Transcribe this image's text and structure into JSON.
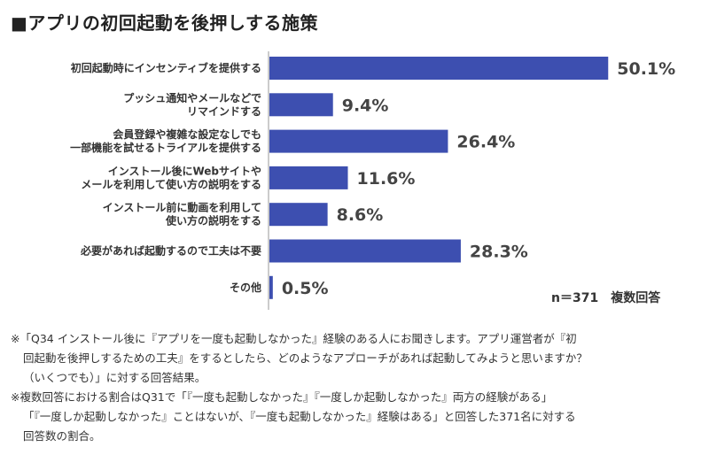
{
  "title": "■アプリの初回起動を後押しする施策",
  "chart_data": {
    "type": "bar",
    "orientation": "horizontal",
    "categories": [
      [
        "初回起動時にインセンティブを提供する"
      ],
      [
        "プッシュ通知やメールなどで",
        "リマインドする"
      ],
      [
        "会員登録や複雑な設定なしでも",
        "一部機能を試せるトライアルを提供する"
      ],
      [
        "インストール後にWebサイトや",
        "メールを利用して使い方の説明をする"
      ],
      [
        "インストール前に動画を利用して",
        "使い方の説明をする"
      ],
      [
        "必要があれば起動するので工夫は不要"
      ],
      [
        "その他"
      ]
    ],
    "values": [
      50.1,
      9.4,
      26.4,
      11.6,
      8.6,
      28.3,
      0.5
    ],
    "value_labels": [
      "50.1%",
      "9.4%",
      "26.4%",
      "11.6%",
      "8.6%",
      "28.3%",
      "0.5%"
    ],
    "unit": "%",
    "xlim": [
      0,
      100
    ],
    "grid": false,
    "bar_color": "#3d4fb0",
    "sample_note": "n＝371　複数回答"
  },
  "notes": [
    "※「Q34 インストール後に『アプリを一度も起動しなかった』経験のある人にお聞きします。アプリ運営者が『初",
    "回起動を後押しするための工夫』をするとしたら、どのようなアプローチがあれば起動してみようと思いますか？",
    "（いくつでも）」に対する回答結果。",
    "※複数回答における割合はQ31で「『一度も起動しなかった』『一度しか起動しなかった』両方の経験がある」",
    "「『一度しか起動しなかった』ことはないが、『一度も起動しなかった』経験はある」と回答した371名に対する",
    "回答数の割合。"
  ]
}
